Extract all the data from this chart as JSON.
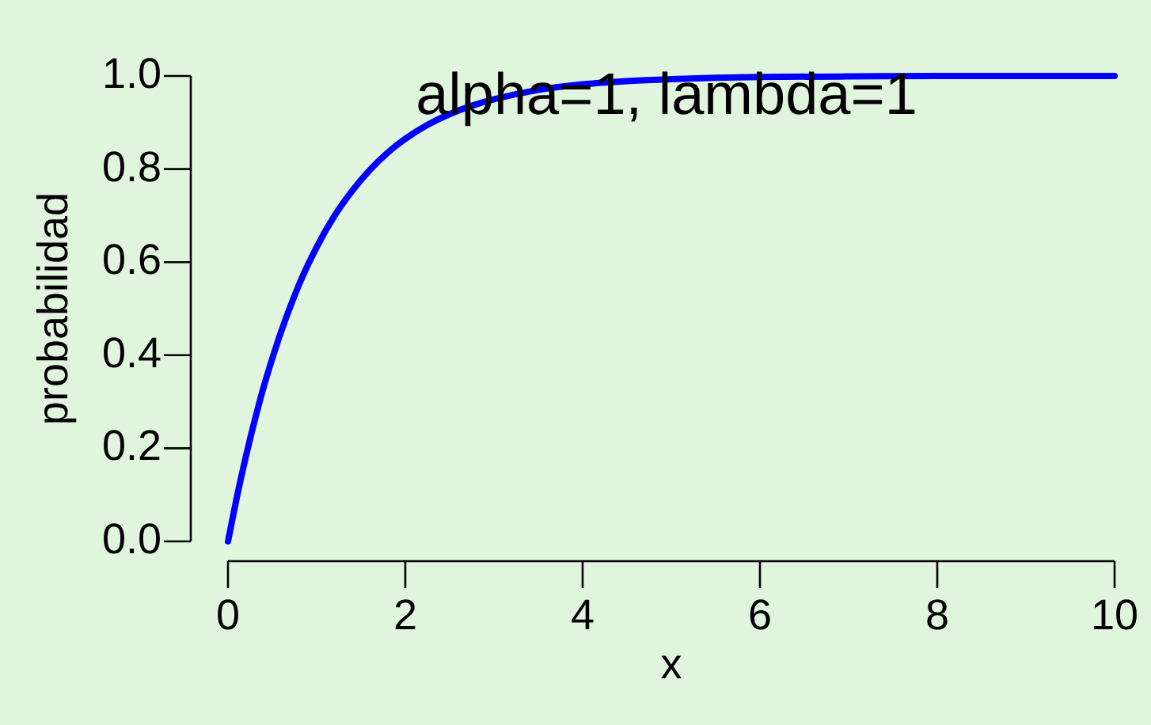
{
  "chart_data": {
    "type": "line",
    "xlabel": "x",
    "ylabel": "probabilidad",
    "annotations": [
      "alpha=1, lambda=1"
    ],
    "x": [
      0,
      0.1,
      0.2,
      0.3,
      0.4,
      0.5,
      0.6,
      0.8,
      1,
      1.2,
      1.4,
      1.6,
      1.8,
      2,
      2.25,
      2.5,
      2.75,
      3,
      3.5,
      4,
      4.5,
      5,
      5.5,
      6,
      7,
      8,
      9,
      10
    ],
    "series": [
      {
        "color": "#0000ff",
        "values": [
          0,
          0.095,
          0.181,
          0.259,
          0.33,
          0.393,
          0.451,
          0.551,
          0.632,
          0.699,
          0.753,
          0.798,
          0.835,
          0.865,
          0.895,
          0.918,
          0.936,
          0.95,
          0.97,
          0.982,
          0.989,
          0.993,
          0.996,
          0.998,
          0.999,
          1,
          1,
          1
        ]
      }
    ],
    "xlim": [
      0,
      10
    ],
    "ylim": [
      0,
      1
    ],
    "xticks": [
      0,
      2,
      4,
      6,
      8,
      10
    ],
    "yticks": [
      {
        "value": 0,
        "label": "0.0"
      },
      0.2,
      0.4,
      0.6,
      0.8,
      {
        "value": 1,
        "label": "1.0"
      }
    ]
  }
}
